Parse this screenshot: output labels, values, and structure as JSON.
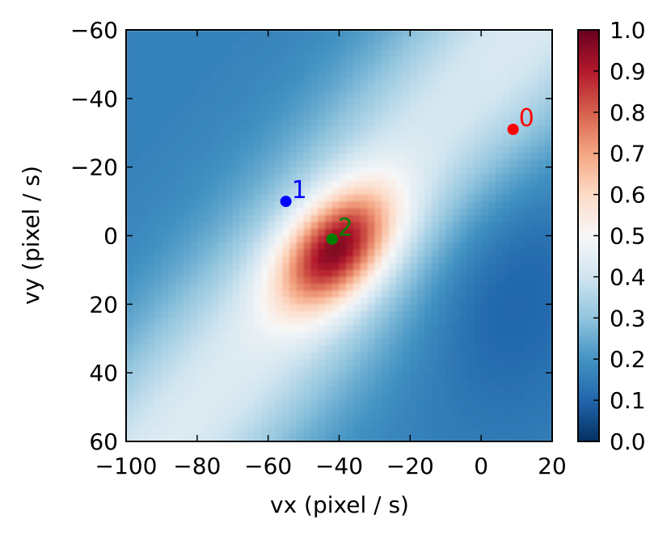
{
  "chart_data": {
    "type": "heatmap",
    "title": "",
    "xlabel": "vx (pixel / s)",
    "ylabel": "vy (pixel / s)",
    "xlim": [
      -100,
      20
    ],
    "ylim": [
      -60,
      60
    ],
    "y_inverted": true,
    "xticks": [
      -100,
      -80,
      -60,
      -40,
      -20,
      0,
      20
    ],
    "xtick_labels": [
      "−100",
      "−80",
      "−60",
      "−40",
      "−20",
      "0",
      "20"
    ],
    "yticks": [
      -60,
      -40,
      -20,
      0,
      20,
      40,
      60
    ],
    "ytick_labels": [
      "−60",
      "−40",
      "−20",
      "0",
      "20",
      "40",
      "60"
    ],
    "colorbar": {
      "colormap": "RdBu_r",
      "range": [
        0.0,
        1.0
      ],
      "ticks": [
        0.0,
        0.1,
        0.2,
        0.3,
        0.4,
        0.5,
        0.6,
        0.7,
        0.8,
        0.9,
        1.0
      ],
      "tick_labels": [
        "0.0",
        "0.1",
        "0.2",
        "0.3",
        "0.4",
        "0.5",
        "0.6",
        "0.7",
        "0.8",
        "0.9",
        "1.0"
      ]
    },
    "heatmap_model": {
      "peak": {
        "vx": -41,
        "vy": 4,
        "value": 0.97
      },
      "ridge_direction": [
        1,
        -1.2
      ],
      "background_value": 0.16
    },
    "points": [
      {
        "label": "0",
        "vx": 9,
        "vy": -31,
        "color": "#ff0000"
      },
      {
        "label": "1",
        "vx": -55,
        "vy": -10,
        "color": "#0000ff"
      },
      {
        "label": "2",
        "vx": -42,
        "vy": 1,
        "color": "#008000"
      }
    ],
    "grid": false,
    "legend": "none"
  }
}
